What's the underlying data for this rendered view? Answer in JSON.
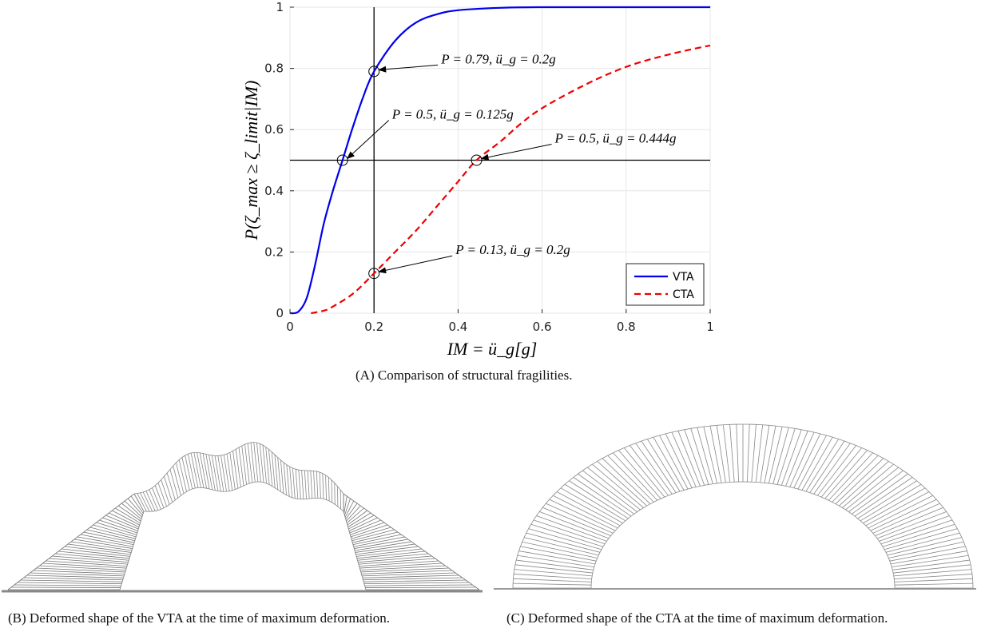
{
  "chart_data": {
    "type": "line",
    "xlabel": "IM = ü_g[g]",
    "ylabel": "P(ζ_max ≥ ζ_limit|IM)",
    "xlim": [
      0,
      1
    ],
    "ylim": [
      0,
      1
    ],
    "x_ticks": [
      "0",
      "0.2",
      "0.4",
      "0.6",
      "0.8",
      "1"
    ],
    "y_ticks": [
      "0",
      "0.2",
      "0.4",
      "0.6",
      "0.8",
      "1"
    ],
    "grid": true,
    "legend_position": "bottom-right",
    "series": [
      {
        "name": "VTA",
        "color": "#0000ee",
        "style": "solid",
        "x": [
          0,
          0.02,
          0.04,
          0.06,
          0.08,
          0.1,
          0.125,
          0.15,
          0.175,
          0.2,
          0.25,
          0.3,
          0.35,
          0.4,
          0.5,
          0.6,
          0.8,
          1.0
        ],
        "y": [
          0,
          0.005,
          0.05,
          0.16,
          0.29,
          0.39,
          0.5,
          0.61,
          0.71,
          0.79,
          0.89,
          0.95,
          0.977,
          0.99,
          0.998,
          1.0,
          1.0,
          1.0
        ]
      },
      {
        "name": "CTA",
        "color": "#ee0000",
        "style": "dashed",
        "x": [
          0.05,
          0.08,
          0.1,
          0.15,
          0.2,
          0.25,
          0.3,
          0.35,
          0.4,
          0.444,
          0.5,
          0.55,
          0.6,
          0.7,
          0.8,
          0.9,
          1.0
        ],
        "y": [
          0,
          0.008,
          0.02,
          0.064,
          0.13,
          0.2,
          0.27,
          0.35,
          0.43,
          0.5,
          0.56,
          0.62,
          0.67,
          0.745,
          0.805,
          0.845,
          0.875
        ]
      }
    ],
    "reference_lines": {
      "vertical_x": 0.2,
      "horizontal_y": 0.5
    },
    "annotations": [
      {
        "text": "P = 0.79, ü_g = 0.2g",
        "x": 0.2,
        "y": 0.79
      },
      {
        "text": "P = 0.5, ü_g = 0.125g",
        "x": 0.125,
        "y": 0.5
      },
      {
        "text": "P = 0.5, ü_g = 0.444g",
        "x": 0.444,
        "y": 0.5
      },
      {
        "text": "P = 0.13, ü_g = 0.2g",
        "x": 0.2,
        "y": 0.13
      }
    ]
  },
  "captions": {
    "a": "(A) Comparison of structural fragilities.",
    "b": "(B) Deformed shape of the VTA at the time of maximum deformation.",
    "c": "(C) Deformed shape of the CTA at the time of maximum deformation."
  }
}
